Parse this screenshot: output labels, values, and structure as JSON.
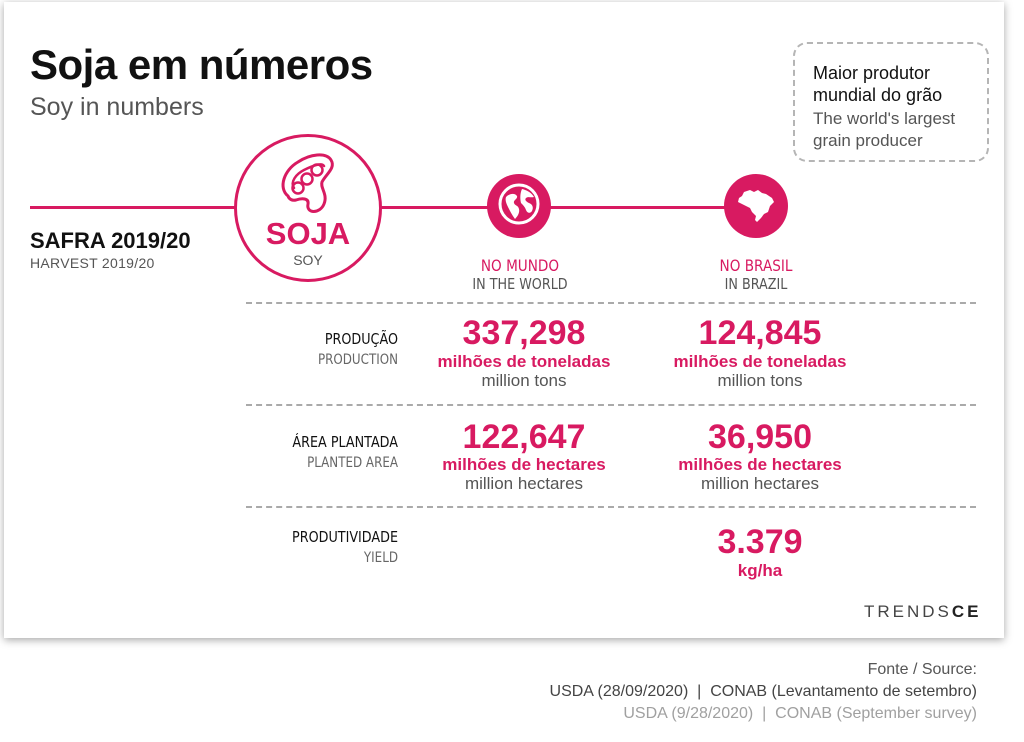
{
  "header": {
    "title": "Soja em números",
    "subtitle": "Soy in numbers"
  },
  "note": {
    "pt": "Maior produtor mundial do grão",
    "en": "The world's largest grain producer"
  },
  "harvest": {
    "pt": "SAFRA 2019/20",
    "en": "HARVEST 2019/20"
  },
  "crop": {
    "pt": "SOJA",
    "en": "SOY"
  },
  "columns": {
    "world": {
      "pt": "NO MUNDO",
      "en": "IN THE WORLD",
      "icon": "globe-icon"
    },
    "brazil": {
      "pt": "NO BRASIL",
      "en": "IN BRAZIL",
      "icon": "brazil-map-icon"
    }
  },
  "rows": {
    "production": {
      "label_pt": "PRODUÇÃO",
      "label_en": "PRODUCTION",
      "world": {
        "value": "337,298",
        "unit_pt": "milhões de toneladas",
        "unit_en": "million tons"
      },
      "brazil": {
        "value": "124,845",
        "unit_pt": "milhões de toneladas",
        "unit_en": "million tons"
      }
    },
    "area": {
      "label_pt": "ÁREA PLANTADA",
      "label_en": "PLANTED AREA",
      "world": {
        "value": "122,647",
        "unit_pt": "milhões de hectares",
        "unit_en": "million hectares"
      },
      "brazil": {
        "value": "36,950",
        "unit_pt": "milhões de hectares",
        "unit_en": "million hectares"
      }
    },
    "yield": {
      "label_pt": "PRODUTIVIDADE",
      "label_en": "YIELD",
      "brazil": {
        "value": "3.379",
        "unit_pt": "kg/ha"
      }
    }
  },
  "brand": {
    "part1": "TRENDS",
    "part2": "CE"
  },
  "source": {
    "label": "Fonte / Source:",
    "pt": "USDA (28/09/2020)  |  CONAB (Levantamento de setembro)",
    "en": "USDA (9/28/2020)  |  CONAB (September survey)"
  },
  "colors": {
    "accent": "#d81a61",
    "text": "#111111",
    "muted": "#555555"
  }
}
